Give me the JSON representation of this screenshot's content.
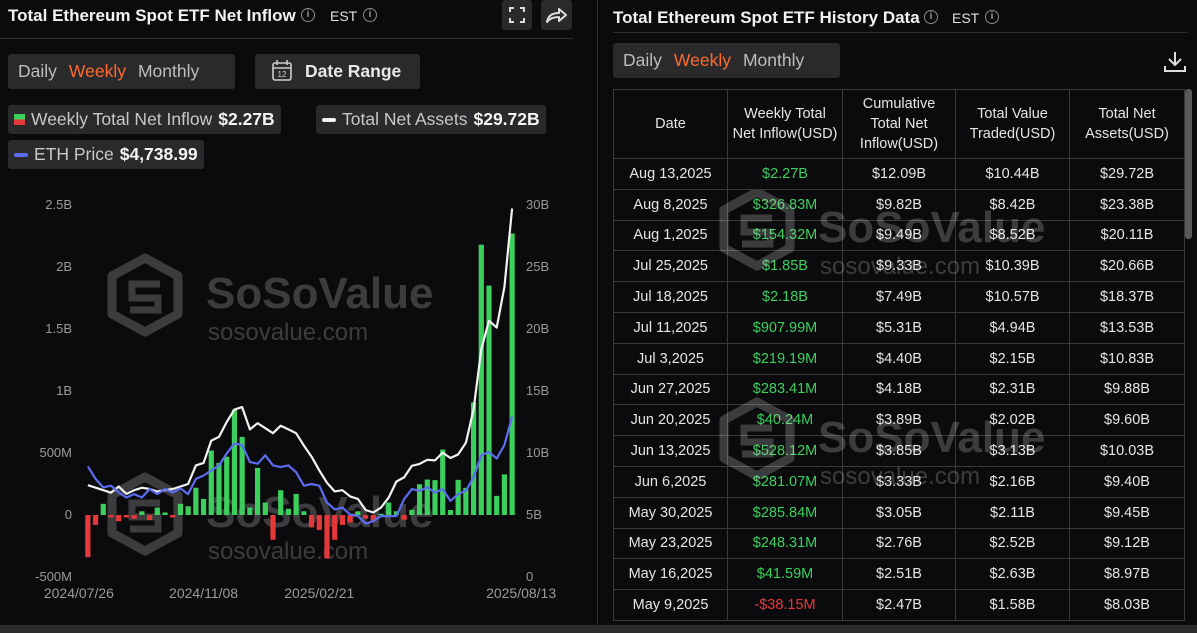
{
  "left_panel": {
    "title": "Total Ethereum Spot ETF Net Inflow",
    "timezone": "EST",
    "tabs": [
      "Daily",
      "Weekly",
      "Monthly"
    ],
    "active_tab": 1,
    "date_range": "Date Range",
    "legend_values": [
      "$2.27B",
      "$29.72B",
      "$4,738.99"
    ]
  },
  "watermark": {
    "brand": "SoSoValue",
    "site": "sosovalue.com"
  },
  "chart_data": {
    "type": "bar",
    "categories": [
      "2024/07/26",
      null,
      null,
      null,
      null,
      null,
      null,
      null,
      null,
      null,
      null,
      null,
      null,
      null,
      null,
      "2024/11/08",
      null,
      null,
      null,
      null,
      null,
      null,
      null,
      null,
      null,
      null,
      null,
      null,
      null,
      null,
      "2025/02/21",
      null,
      null,
      null,
      null,
      null,
      null,
      null,
      null,
      null,
      null,
      null,
      null,
      null,
      null,
      null,
      null,
      null,
      null,
      null,
      null,
      null,
      null,
      null,
      null,
      "2025/08/13"
    ],
    "series": [
      {
        "name": "Weekly Total Net Inflow",
        "type": "bar",
        "color": "#3ccf5e",
        "negative_color": "#e5383b",
        "values": [
          -0.34,
          -0.08,
          0.09,
          -0.02,
          -0.05,
          -0.02,
          -0.03,
          0.03,
          -0.04,
          0.06,
          0.02,
          -0.02,
          0.09,
          0.07,
          0.22,
          0.13,
          0.52,
          0.42,
          0.47,
          0.85,
          0.63,
          0.06,
          0.38,
          0.1,
          -0.2,
          0.2,
          0.05,
          0.17,
          0.03,
          -0.1,
          -0.12,
          -0.35,
          -0.2,
          -0.08,
          -0.06,
          0.03,
          -0.03,
          -0.05,
          0.01,
          0.1,
          0.03,
          -0.03815,
          0.04159,
          0.24831,
          0.28584,
          0.28107,
          0.52812,
          0.04024,
          0.28341,
          0.21919,
          0.90799,
          2.18,
          1.85,
          0.15432,
          0.32683,
          2.27
        ]
      },
      {
        "name": "Total Net Assets",
        "type": "line",
        "color": "#f2f2f2",
        "axis": "y2",
        "values": [
          7.4,
          7.2,
          7.0,
          6.8,
          7.3,
          6.7,
          7.0,
          7.2,
          7.1,
          6.9,
          7.0,
          7.1,
          7.3,
          7.5,
          9.0,
          9.2,
          11.0,
          11.3,
          12.5,
          13.5,
          13.7,
          11.9,
          12.4,
          12.0,
          11.6,
          12.2,
          11.9,
          11.6,
          10.6,
          9.7,
          8.6,
          7.6,
          6.9,
          7.0,
          6.5,
          6.3,
          5.4,
          5.2,
          5.6,
          6.4,
          7.7,
          8.03,
          8.97,
          9.12,
          9.45,
          9.4,
          10.03,
          9.6,
          9.88,
          10.83,
          13.53,
          18.37,
          20.66,
          20.11,
          23.38,
          29.72
        ]
      },
      {
        "name": "ETH Price",
        "type": "line",
        "color": "#5b6cf0",
        "axis": "y3",
        "values": [
          3270,
          2900,
          2650,
          2700,
          2500,
          2350,
          2450,
          2350,
          2600,
          2450,
          2600,
          2500,
          2620,
          2450,
          2900,
          3000,
          3150,
          3300,
          3650,
          3950,
          3900,
          3400,
          3350,
          3600,
          3300,
          3250,
          3300,
          3100,
          2700,
          2750,
          2700,
          2200,
          2000,
          2050,
          1850,
          1800,
          1580,
          1650,
          1800,
          1800,
          1800,
          2300,
          2600,
          2550,
          2650,
          2500,
          2600,
          2250,
          2450,
          2550,
          2950,
          3600,
          3700,
          3500,
          3900,
          4738.99
        ]
      }
    ],
    "ylim": [
      -0.5,
      2.5
    ],
    "yticks": [
      {
        "value": -0.5,
        "label": "-500M"
      },
      0,
      {
        "value": 0.5,
        "label": "500M"
      },
      {
        "value": 1,
        "label": "1B"
      },
      {
        "value": 1.5,
        "label": "1.5B"
      },
      {
        "value": 2,
        "label": "2B"
      },
      {
        "value": 2.5,
        "label": "2.5B"
      }
    ],
    "y2lim": [
      0,
      30
    ],
    "y2ticks": [
      0,
      {
        "value": 5,
        "label": "5B"
      },
      {
        "value": 10,
        "label": "10B"
      },
      {
        "value": 15,
        "label": "15B"
      },
      {
        "value": 20,
        "label": "20B"
      },
      {
        "value": 25,
        "label": "25B"
      },
      {
        "value": 30,
        "label": "30B"
      }
    ],
    "y3lim": [
      0,
      11000
    ],
    "grid": false
  },
  "right_panel": {
    "title": "Total Ethereum Spot ETF History Data",
    "timezone": "EST",
    "tabs": [
      "Daily",
      "Weekly",
      "Monthly"
    ],
    "active_tab": 1,
    "table": {
      "header": [
        "Date",
        "Weekly Total Net Inflow(USD)",
        "Cumulative Total Net Inflow(USD)",
        "Total Value Traded(USD)",
        "Total Net Assets(USD)"
      ],
      "rows": [
        [
          "Aug 13,2025",
          "$2.27B",
          "$12.09B",
          "$10.44B",
          "$29.72B"
        ],
        [
          "Aug 8,2025",
          "$326.83M",
          "$9.82B",
          "$8.42B",
          "$23.38B"
        ],
        [
          "Aug 1,2025",
          "$154.32M",
          "$9.49B",
          "$8.52B",
          "$20.11B"
        ],
        [
          "Jul 25,2025",
          "$1.85B",
          "$9.33B",
          "$10.39B",
          "$20.66B"
        ],
        [
          "Jul 18,2025",
          "$2.18B",
          "$7.49B",
          "$10.57B",
          "$18.37B"
        ],
        [
          "Jul 11,2025",
          "$907.99M",
          "$5.31B",
          "$4.94B",
          "$13.53B"
        ],
        [
          "Jul 3,2025",
          "$219.19M",
          "$4.40B",
          "$2.15B",
          "$10.83B"
        ],
        [
          "Jun 27,2025",
          "$283.41M",
          "$4.18B",
          "$2.31B",
          "$9.88B"
        ],
        [
          "Jun 20,2025",
          "$40.24M",
          "$3.89B",
          "$2.02B",
          "$9.60B"
        ],
        [
          "Jun 13,2025",
          "$528.12M",
          "$3.85B",
          "$3.13B",
          "$10.03B"
        ],
        [
          "Jun 6,2025",
          "$281.07M",
          "$3.33B",
          "$2.16B",
          "$9.40B"
        ],
        [
          "May 30,2025",
          "$285.84M",
          "$3.05B",
          "$2.11B",
          "$9.45B"
        ],
        [
          "May 23,2025",
          "$248.31M",
          "$2.76B",
          "$2.52B",
          "$9.12B"
        ],
        [
          "May 16,2025",
          "$41.59M",
          "$2.51B",
          "$2.63B",
          "$8.97B"
        ],
        [
          "May 9,2025",
          "-$38.15M",
          "$2.47B",
          "$1.58B",
          "$8.03B"
        ]
      ]
    }
  }
}
